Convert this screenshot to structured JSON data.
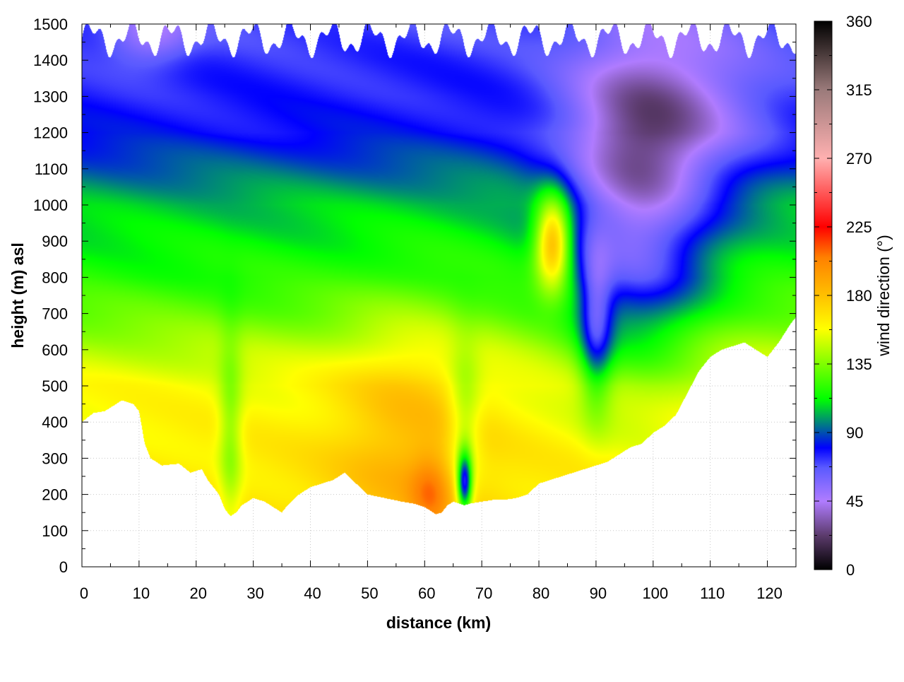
{
  "chart_data": {
    "type": "heatmap",
    "title": "",
    "xlabel": "distance (km)",
    "ylabel": "height (m) asl",
    "colorbar_label": "wind direction (°)",
    "xlim": [
      0,
      125
    ],
    "ylim": [
      0,
      1500
    ],
    "clim": [
      0,
      360
    ],
    "x_ticks": [
      0,
      10,
      20,
      30,
      40,
      50,
      60,
      70,
      80,
      90,
      100,
      110,
      120
    ],
    "y_ticks": [
      0,
      100,
      200,
      300,
      400,
      500,
      600,
      700,
      800,
      900,
      1000,
      1100,
      1200,
      1300,
      1400,
      1500
    ],
    "colorbar_ticks": [
      0,
      45,
      90,
      135,
      180,
      225,
      270,
      315,
      360
    ],
    "grid": true,
    "colormap": [
      {
        "value": 0,
        "color": "#000000"
      },
      {
        "value": 22,
        "color": "#5a3a6a"
      },
      {
        "value": 45,
        "color": "#b07cff"
      },
      {
        "value": 67,
        "color": "#5a5aff"
      },
      {
        "value": 80,
        "color": "#0000ff"
      },
      {
        "value": 98,
        "color": "#009070"
      },
      {
        "value": 112,
        "color": "#00ff00"
      },
      {
        "value": 135,
        "color": "#7fff00"
      },
      {
        "value": 158,
        "color": "#ffff00"
      },
      {
        "value": 180,
        "color": "#ffc000"
      },
      {
        "value": 205,
        "color": "#ff8000"
      },
      {
        "value": 225,
        "color": "#ff0000"
      },
      {
        "value": 270,
        "color": "#ffb0b0"
      },
      {
        "value": 315,
        "color": "#9a7a7a"
      },
      {
        "value": 360,
        "color": "#000000"
      }
    ],
    "terrain_profile": {
      "distance_km": [
        0,
        2,
        4,
        6,
        7,
        9,
        10,
        11,
        12,
        14,
        17,
        19,
        21,
        22,
        24,
        25,
        26,
        27,
        28,
        30,
        32,
        34,
        35,
        36,
        38,
        40,
        42,
        44,
        46,
        48,
        50,
        53,
        56,
        58,
        60,
        61,
        62,
        63,
        64,
        65,
        66,
        67,
        68,
        70,
        72,
        74,
        76,
        78,
        80,
        82,
        84,
        86,
        88,
        90,
        92,
        94,
        96,
        98,
        100,
        102,
        104,
        106,
        108,
        110,
        112,
        114,
        116,
        118,
        120,
        121,
        122,
        124,
        125
      ],
      "height_m": [
        400,
        425,
        430,
        450,
        460,
        450,
        430,
        340,
        300,
        280,
        285,
        260,
        270,
        240,
        200,
        160,
        140,
        150,
        170,
        190,
        180,
        160,
        150,
        170,
        200,
        220,
        230,
        240,
        260,
        230,
        200,
        190,
        180,
        175,
        165,
        155,
        145,
        150,
        170,
        180,
        175,
        170,
        175,
        180,
        185,
        185,
        190,
        200,
        230,
        240,
        250,
        260,
        270,
        280,
        290,
        310,
        330,
        340,
        370,
        390,
        420,
        480,
        540,
        580,
        600,
        610,
        620,
        600,
        580,
        600,
        620,
        670,
        690
      ]
    },
    "background_direction": {
      "height_m": [
        0,
        250,
        500,
        600,
        700,
        800,
        1000,
        1100,
        1200,
        1300,
        1400,
        1500
      ],
      "direction_deg": [
        168,
        166,
        158,
        145,
        130,
        118,
        105,
        92,
        80,
        76,
        74,
        70
      ]
    },
    "features": [
      {
        "label": "mid-valley southerly core",
        "center_km": 57,
        "center_m": 380,
        "sigma_km": 9,
        "sigma_m": 260,
        "delta_deg": 20
      },
      {
        "label": "surface southerly near 62 km",
        "center_km": 61,
        "center_m": 200,
        "sigma_km": 2.5,
        "sigma_m": 80,
        "delta_deg": 25
      },
      {
        "label": "green column near 26 km",
        "center_km": 26,
        "center_m": 350,
        "sigma_km": 1.5,
        "sigma_m": 200,
        "delta_deg": -25
      },
      {
        "label": "low-level easterly near 67 km",
        "center_km": 67,
        "center_m": 230,
        "sigma_km": 0.9,
        "sigma_m": 60,
        "delta_deg": -85
      },
      {
        "label": "green notch near 67 km",
        "center_km": 67,
        "center_m": 400,
        "sigma_km": 2,
        "sigma_m": 150,
        "delta_deg": -25
      },
      {
        "label": "orange jet near 82 km",
        "center_km": 82.5,
        "center_m": 900,
        "sigma_km": 2.2,
        "sigma_m": 90,
        "delta_deg": 85
      },
      {
        "label": "westerly surge 85-105 km",
        "center_km": 97,
        "center_m": 950,
        "sigma_km": 9,
        "sigma_m": 300,
        "delta_deg": -55
      },
      {
        "label": "upper westerly east side",
        "center_km": 105,
        "center_m": 1250,
        "sigma_km": 12,
        "sigma_m": 180,
        "delta_deg": -25
      },
      {
        "label": "upper westerly near 10 km",
        "center_km": 12,
        "center_m": 1470,
        "sigma_km": 5,
        "sigma_m": 60,
        "delta_deg": -25
      },
      {
        "label": "deep easterly near 90 km",
        "center_km": 90,
        "center_m": 650,
        "sigma_km": 2,
        "sigma_m": 150,
        "delta_deg": -45
      }
    ]
  }
}
